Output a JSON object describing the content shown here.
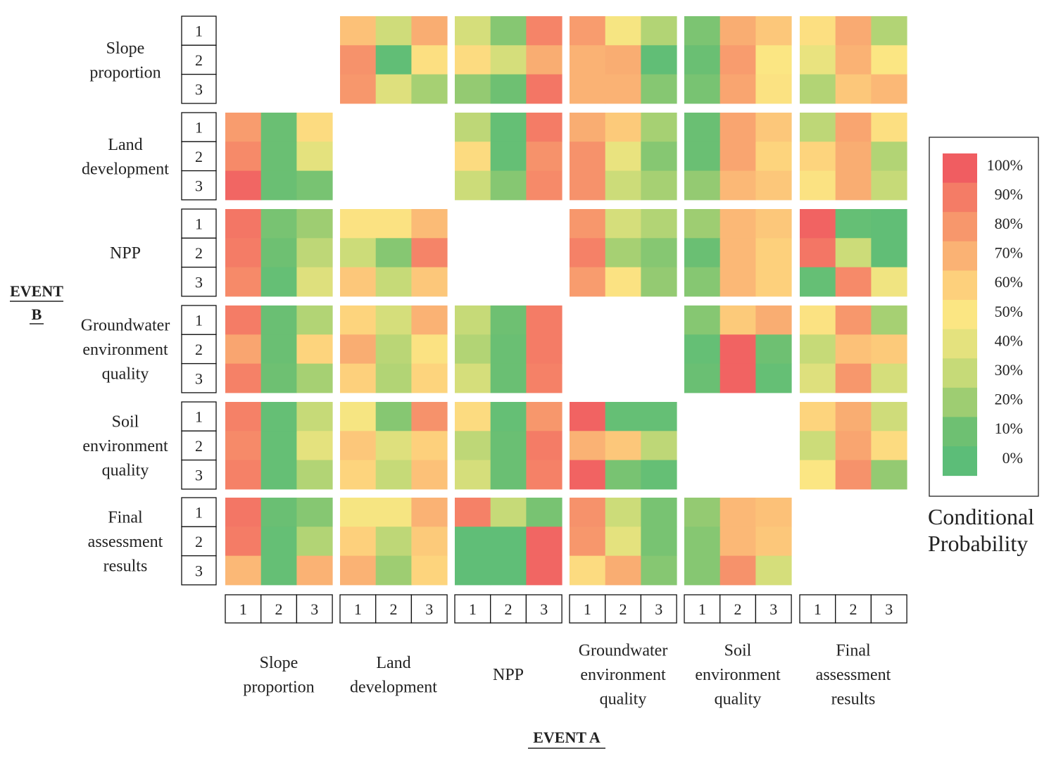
{
  "chart_data": {
    "type": "heatmap",
    "title": "",
    "xlabel": "EVENT A",
    "ylabel": "EVENT B",
    "groups": [
      "Slope proportion",
      "Land development",
      "NPP",
      "Groundwater environment quality",
      "Soil environment quality",
      "Final assessment results"
    ],
    "group_label_lines": [
      [
        "Slope",
        "proportion"
      ],
      [
        "Land",
        "development"
      ],
      [
        "NPP"
      ],
      [
        "Groundwater",
        "environment",
        "quality"
      ],
      [
        "Soil",
        "environment",
        "quality"
      ],
      [
        "Final",
        "assessment",
        "results"
      ]
    ],
    "levels": [
      "1",
      "2",
      "3"
    ],
    "ylabel_lines": [
      "EVENT",
      "B"
    ],
    "legend": {
      "title_lines": [
        "Conditional",
        "Probability"
      ],
      "ticks": [
        "100%",
        "90%",
        "80%",
        "70%",
        "60%",
        "50%",
        "40%",
        "30%",
        "20%",
        "10%",
        "0%"
      ],
      "color_stops": [
        {
          "value": 0,
          "color": "#5cbd78"
        },
        {
          "value": 10,
          "color": "#6ec072"
        },
        {
          "value": 20,
          "color": "#9ecd72"
        },
        {
          "value": 30,
          "color": "#c6da78"
        },
        {
          "value": 40,
          "color": "#e4e27e"
        },
        {
          "value": 50,
          "color": "#fbe683"
        },
        {
          "value": 60,
          "color": "#fdd07c"
        },
        {
          "value": 70,
          "color": "#fab274"
        },
        {
          "value": 80,
          "color": "#f7976c"
        },
        {
          "value": 90,
          "color": "#f47c66"
        },
        {
          "value": 100,
          "color": "#f05d61"
        }
      ]
    },
    "value_unit": "%",
    "note": "cells[B-group][A-group] is a 3x3 matrix: rows = EVENT B level 1..3, columns = EVENT A level 1..3, values = conditional probability (%). null = blank diagonal block.",
    "cells": [
      [
        null,
        [
          [
            65,
            33,
            72
          ],
          [
            82,
            3,
            53
          ],
          [
            80,
            38,
            22
          ]
        ],
        [
          [
            35,
            15,
            87
          ],
          [
            55,
            35,
            72
          ],
          [
            18,
            10,
            92
          ]
        ],
        [
          [
            78,
            48,
            25
          ],
          [
            70,
            72,
            3
          ],
          [
            70,
            70,
            15
          ]
        ],
        [
          [
            13,
            72,
            63
          ],
          [
            8,
            78,
            50
          ],
          [
            12,
            75,
            52
          ]
        ],
        [
          [
            53,
            73,
            25
          ],
          [
            42,
            70,
            50
          ],
          [
            25,
            63,
            68
          ]
        ]
      ],
      [
        [
          [
            78,
            8,
            55
          ],
          [
            85,
            8,
            40
          ],
          [
            97,
            8,
            12
          ]
        ],
        null,
        [
          [
            28,
            5,
            90
          ],
          [
            55,
            5,
            82
          ],
          [
            32,
            15,
            85
          ]
        ],
        [
          [
            72,
            62,
            22
          ],
          [
            82,
            42,
            15
          ],
          [
            82,
            32,
            22
          ]
        ],
        [
          [
            8,
            75,
            63
          ],
          [
            8,
            75,
            58
          ],
          [
            18,
            68,
            63
          ]
        ],
        [
          [
            28,
            75,
            53
          ],
          [
            58,
            72,
            25
          ],
          [
            52,
            72,
            30
          ]
        ]
      ],
      [
        [
          [
            92,
            12,
            20
          ],
          [
            90,
            10,
            28
          ],
          [
            85,
            5,
            38
          ]
        ],
        [
          [
            52,
            52,
            67
          ],
          [
            32,
            15,
            87
          ],
          [
            63,
            30,
            63
          ]
        ],
        null,
        [
          [
            80,
            35,
            25
          ],
          [
            88,
            22,
            15
          ],
          [
            78,
            52,
            18
          ]
        ],
        [
          [
            20,
            68,
            63
          ],
          [
            8,
            68,
            60
          ],
          [
            15,
            68,
            60
          ]
        ],
        [
          [
            98,
            5,
            3
          ],
          [
            92,
            32,
            3
          ],
          [
            5,
            85,
            45
          ]
        ]
      ],
      [
        [
          [
            90,
            8,
            25
          ],
          [
            75,
            8,
            58
          ],
          [
            88,
            10,
            22
          ]
        ],
        [
          [
            58,
            35,
            70
          ],
          [
            72,
            27,
            52
          ],
          [
            60,
            25,
            58
          ]
        ],
        [
          [
            30,
            10,
            90
          ],
          [
            25,
            8,
            90
          ],
          [
            35,
            8,
            88
          ]
        ],
        null,
        [
          [
            15,
            62,
            72
          ],
          [
            5,
            98,
            10
          ],
          [
            8,
            98,
            5
          ]
        ],
        [
          [
            52,
            80,
            22
          ],
          [
            30,
            65,
            62
          ],
          [
            38,
            80,
            35
          ]
        ]
      ],
      [
        [
          [
            88,
            5,
            30
          ],
          [
            85,
            5,
            40
          ],
          [
            88,
            5,
            25
          ]
        ],
        [
          [
            48,
            15,
            82
          ],
          [
            63,
            38,
            60
          ],
          [
            58,
            30,
            65
          ]
        ],
        [
          [
            55,
            5,
            80
          ],
          [
            28,
            8,
            90
          ],
          [
            35,
            8,
            88
          ]
        ],
        [
          [
            98,
            5,
            5
          ],
          [
            70,
            63,
            28
          ],
          [
            98,
            12,
            5
          ]
        ],
        null,
        [
          [
            58,
            72,
            33
          ],
          [
            32,
            75,
            55
          ],
          [
            50,
            82,
            18
          ]
        ]
      ],
      [
        [
          [
            92,
            8,
            15
          ],
          [
            90,
            5,
            25
          ],
          [
            68,
            5,
            70
          ]
        ],
        [
          [
            48,
            48,
            70
          ],
          [
            60,
            28,
            62
          ],
          [
            70,
            20,
            58
          ]
        ],
        [
          [
            88,
            30,
            12
          ],
          [
            2,
            2,
            97
          ],
          [
            2,
            2,
            97
          ]
        ],
        [
          [
            82,
            32,
            12
          ],
          [
            80,
            40,
            12
          ],
          [
            55,
            72,
            15
          ]
        ],
        [
          [
            18,
            68,
            65
          ],
          [
            15,
            68,
            63
          ],
          [
            15,
            82,
            35
          ]
        ],
        null
      ]
    ]
  }
}
